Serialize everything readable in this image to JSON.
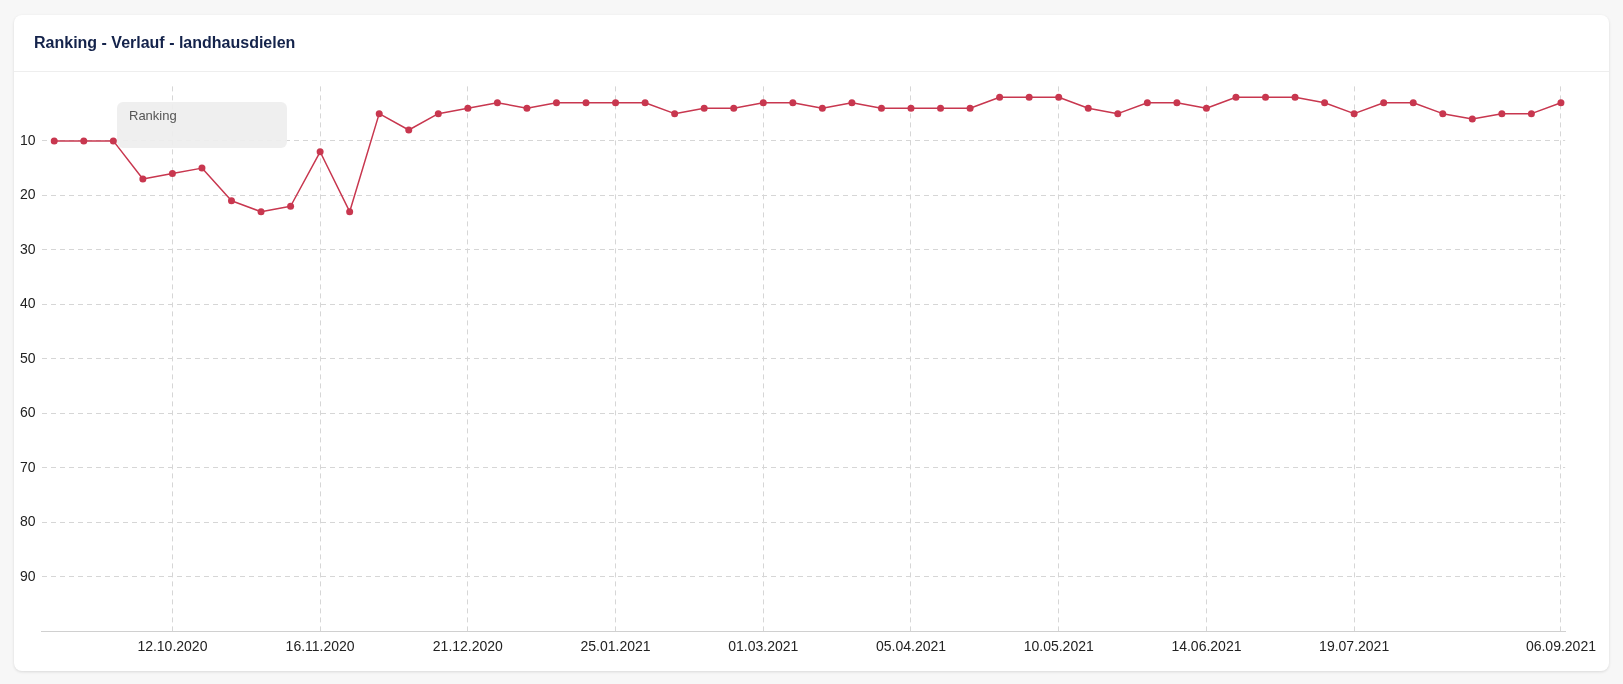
{
  "chart_data": {
    "type": "line",
    "title": "Ranking - Verlauf - landhausdielen",
    "annotations": [
      "Ranking"
    ],
    "x": [
      "2020-09-14",
      "2020-09-21",
      "2020-09-28",
      "2020-10-05",
      "2020-10-12",
      "2020-10-19",
      "2020-10-26",
      "2020-11-02",
      "2020-11-09",
      "2020-11-16",
      "2020-11-23",
      "2020-11-30",
      "2020-12-07",
      "2020-12-14",
      "2020-12-21",
      "2020-12-28",
      "2021-01-04",
      "2021-01-11",
      "2021-01-18",
      "2021-01-25",
      "2021-02-01",
      "2021-02-08",
      "2021-02-15",
      "2021-02-22",
      "2021-03-01",
      "2021-03-08",
      "2021-03-15",
      "2021-03-22",
      "2021-03-29",
      "2021-04-05",
      "2021-04-12",
      "2021-04-19",
      "2021-04-26",
      "2021-05-03",
      "2021-05-10",
      "2021-05-17",
      "2021-05-24",
      "2021-05-31",
      "2021-06-07",
      "2021-06-14",
      "2021-06-21",
      "2021-06-28",
      "2021-07-05",
      "2021-07-12",
      "2021-07-19",
      "2021-07-26",
      "2021-08-02",
      "2021-08-09",
      "2021-08-16",
      "2021-08-23",
      "2021-08-30",
      "2021-09-06"
    ],
    "series": [
      {
        "color": "#c8374f",
        "values": [
          10,
          10,
          10,
          17,
          16,
          15,
          21,
          23,
          22,
          12,
          23,
          5,
          8,
          5,
          4,
          3,
          4,
          3,
          3,
          3,
          3,
          5,
          4,
          4,
          3,
          3,
          4,
          3,
          4,
          4,
          4,
          4,
          2,
          2,
          2,
          4,
          5,
          3,
          3,
          4,
          2,
          2,
          2,
          3,
          5,
          3,
          3,
          5,
          6,
          5,
          5,
          3
        ]
      }
    ],
    "xlim": [
      "2020-09-11",
      "2021-09-07"
    ],
    "xticks": [
      {
        "value": "2020-10-12",
        "label": "12.10.2020"
      },
      {
        "value": "2020-11-16",
        "label": "16.11.2020"
      },
      {
        "value": "2020-12-21",
        "label": "21.12.2020"
      },
      {
        "value": "2021-01-25",
        "label": "25.01.2021"
      },
      {
        "value": "2021-03-01",
        "label": "01.03.2021"
      },
      {
        "value": "2021-04-05",
        "label": "05.04.2021"
      },
      {
        "value": "2021-05-10",
        "label": "10.05.2021"
      },
      {
        "value": "2021-06-14",
        "label": "14.06.2021"
      },
      {
        "value": "2021-07-19",
        "label": "19.07.2021"
      },
      {
        "value": "2021-09-06",
        "label": "06.09.2021"
      }
    ],
    "ylim": [
      100,
      0
    ],
    "yticks": [
      10,
      20,
      30,
      40,
      50,
      60,
      70,
      80,
      90
    ],
    "grid": true,
    "marker": "circle",
    "line_style": "solid",
    "legend": false
  }
}
